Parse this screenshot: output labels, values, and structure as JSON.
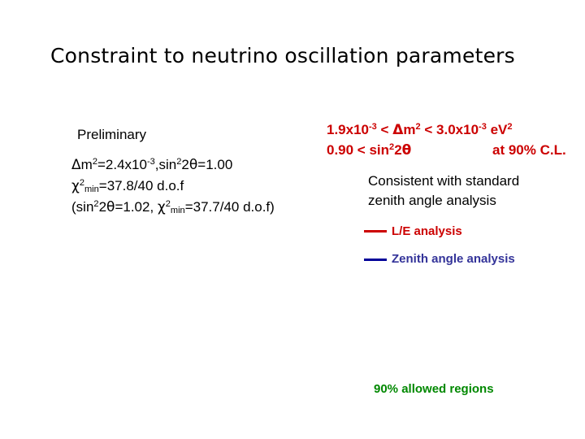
{
  "title": "Constraint to neutrino oscillation parameters",
  "preliminary": "Preliminary",
  "best_fit": {
    "dm2_prefix": "m",
    "dm2_exp": "2",
    "dm2_value": "=2.4x10",
    "dm2_power": "-3",
    "sin_label": ",sin",
    "sin_exp": "2",
    "sin_arg": "2",
    "sin_value": "=1.00",
    "chi_exp": "2",
    "chi_sub": "min",
    "chi_value": "=37.8/40 d.o.f",
    "alt_open": "(sin",
    "alt_sin_exp": "2",
    "alt_sin_arg": "2",
    "alt_sin_value": "=1.02, ",
    "alt_chi_exp": "2",
    "alt_chi_sub": "min",
    "alt_chi_value": "=37.7/40 d.o.f)"
  },
  "range": {
    "low": "1.9x10",
    "low_power": "-3",
    "lt1": " < ",
    "dm_m": "m",
    "dm_exp": "2",
    "lt2": " < 3.0x10",
    "high_power": "-3",
    "unit": " eV",
    "unit_exp": "2",
    "sin_prefix": "0.90 < sin",
    "sin_exp": "2",
    "sin_arg": "2",
    "cl": "at 90% C.L."
  },
  "consistent": {
    "line1": "Consistent with standard",
    "line2": "zenith angle analysis"
  },
  "legend": [
    {
      "label": "L/E analysis",
      "color": "#cc0000"
    },
    {
      "label": "Zenith angle analysis",
      "color": "#000099"
    }
  ],
  "allowed_regions": "90% allowed regions"
}
